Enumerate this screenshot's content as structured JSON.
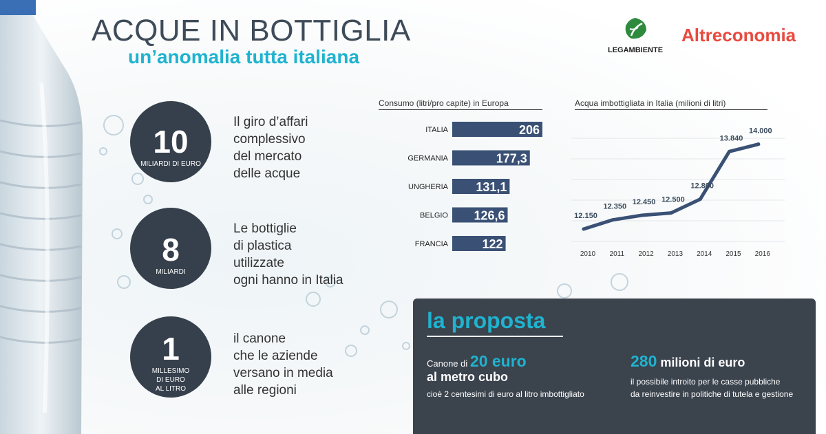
{
  "header": {
    "title": "ACQUE IN BOTTIGLIA",
    "subtitle": "un’anomalia tutta italiana",
    "logo_legambiente": "LEGAMBIENTE",
    "logo_altreconomia": "Altreconomia"
  },
  "stats": [
    {
      "number": "10",
      "unit": "MILIARDI DI EURO",
      "text": "Il giro d’affari\ncomplessivo\ndel mercato\ndelle acque"
    },
    {
      "number": "8",
      "unit": "MILIARDI",
      "text": "Le bottiglie\ndi plastica\nutilizzate\nogni hanno in Italia"
    },
    {
      "number": "1",
      "unit": "MILLESIMO\nDI EURO\nAL LITRO",
      "text": "il canone\nche le aziende\nversano in media\nalle regioni"
    }
  ],
  "chart_data": [
    {
      "type": "bar",
      "title": "Consumo (litri/pro capite) in Europa",
      "categories": [
        "ITALIA",
        "GERMANIA",
        "UNGHERIA",
        "BELGIO",
        "FRANCIA"
      ],
      "values": [
        206,
        177.3,
        131.1,
        126.6,
        122
      ],
      "value_labels": [
        "206",
        "177,3",
        "131,1",
        "126,6",
        "122"
      ],
      "orientation": "horizontal",
      "bar_color": "#3a5175"
    },
    {
      "type": "line",
      "title": "Acqua imbottigliata in Italia (milioni di litri)",
      "x": [
        "2010",
        "2011",
        "2012",
        "2013",
        "2014",
        "2015",
        "2016"
      ],
      "y": [
        12150,
        12350,
        12450,
        12500,
        12800,
        13840,
        14000
      ],
      "point_labels": [
        "12.150",
        "12.350",
        "12.450",
        "12.500",
        "12.800",
        "13.840",
        "14.000"
      ],
      "line_color": "#3a5175",
      "grid": true
    }
  ],
  "proposal": {
    "title": "la proposta",
    "left_prefix": "Canone di",
    "left_big": "20 euro",
    "left_line2": "al metro cubo",
    "left_note": "cioè 2 centesimi di euro al litro imbottigliato",
    "right_big": "280",
    "right_rest": "milioni di euro",
    "right_note": "il possibile introito per le casse pubbliche\nda reinvestire in politiche di tutela e gestione"
  },
  "colors": {
    "accent": "#1fb3cf",
    "dark": "#36404c",
    "brand_red": "#e94a3f",
    "legambiente_green": "#2e8b3e"
  }
}
